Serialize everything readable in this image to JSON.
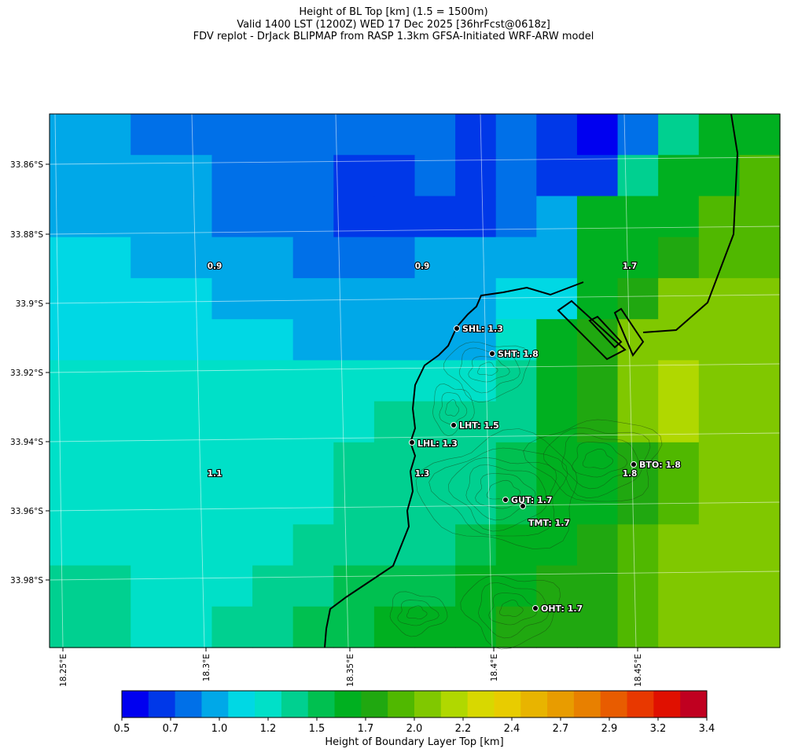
{
  "title": {
    "line1": "Height of BL Top [km] (1.5 = 1500m)",
    "line2": "Valid 1400 LST (1200Z) WED 17 Dec 2025 [36hrFcst@0618z]",
    "line3": "FDV replot - DrJack BLIPMAP from RASP 1.3km GFSA-Initiated WRF-ARW model"
  },
  "lat_ticks": [
    "33.86°S",
    "33.88°S",
    "33.9°S",
    "33.92°S",
    "33.94°S",
    "33.96°S",
    "33.98°S"
  ],
  "lon_ticks": [
    "18.25°E",
    "18.3°E",
    "18.35°E",
    "18.4°E",
    "18.45°E"
  ],
  "colorbar": {
    "title": "Height of Boundary Layer Top [km]",
    "tick_labels": [
      "0.5",
      "0.7",
      "1.0",
      "1.2",
      "1.5",
      "1.7",
      "2.0",
      "2.2",
      "2.4",
      "2.7",
      "2.9",
      "3.2",
      "3.4"
    ],
    "colors": [
      "#0000f0",
      "#0038e8",
      "#0070e8",
      "#00a8e8",
      "#00d8e4",
      "#00e0c8",
      "#00d090",
      "#00c050",
      "#00b020",
      "#20a810",
      "#50b800",
      "#80c800",
      "#b0d800",
      "#d8d800",
      "#e8cc00",
      "#e8b400",
      "#e89c00",
      "#e88000",
      "#e85c00",
      "#e83800",
      "#e01000",
      "#c00020"
    ]
  },
  "cell_labels": [
    "0.9",
    "0.9",
    "1.7",
    "1.1",
    "1.3",
    "1.8"
  ],
  "sites": [
    {
      "code": "SHL",
      "label": "SHL: 1.3",
      "value": 1.3
    },
    {
      "code": "SHT",
      "label": "SHT: 1.8",
      "value": 1.8
    },
    {
      "code": "LHT",
      "label": "LHT: 1.5",
      "value": 1.5
    },
    {
      "code": "LHL",
      "label": "LHL: 1.3",
      "value": 1.3
    },
    {
      "code": "BTO",
      "label": "BTO: 1.8",
      "value": 1.8
    },
    {
      "code": "GUT",
      "label": "GUT: 1.7",
      "value": 1.7
    },
    {
      "code": "TMT",
      "label": "TMT: 1.7",
      "value": 1.7
    },
    {
      "code": "OHT",
      "label": "OHT: 1.7",
      "value": 1.7
    }
  ]
}
